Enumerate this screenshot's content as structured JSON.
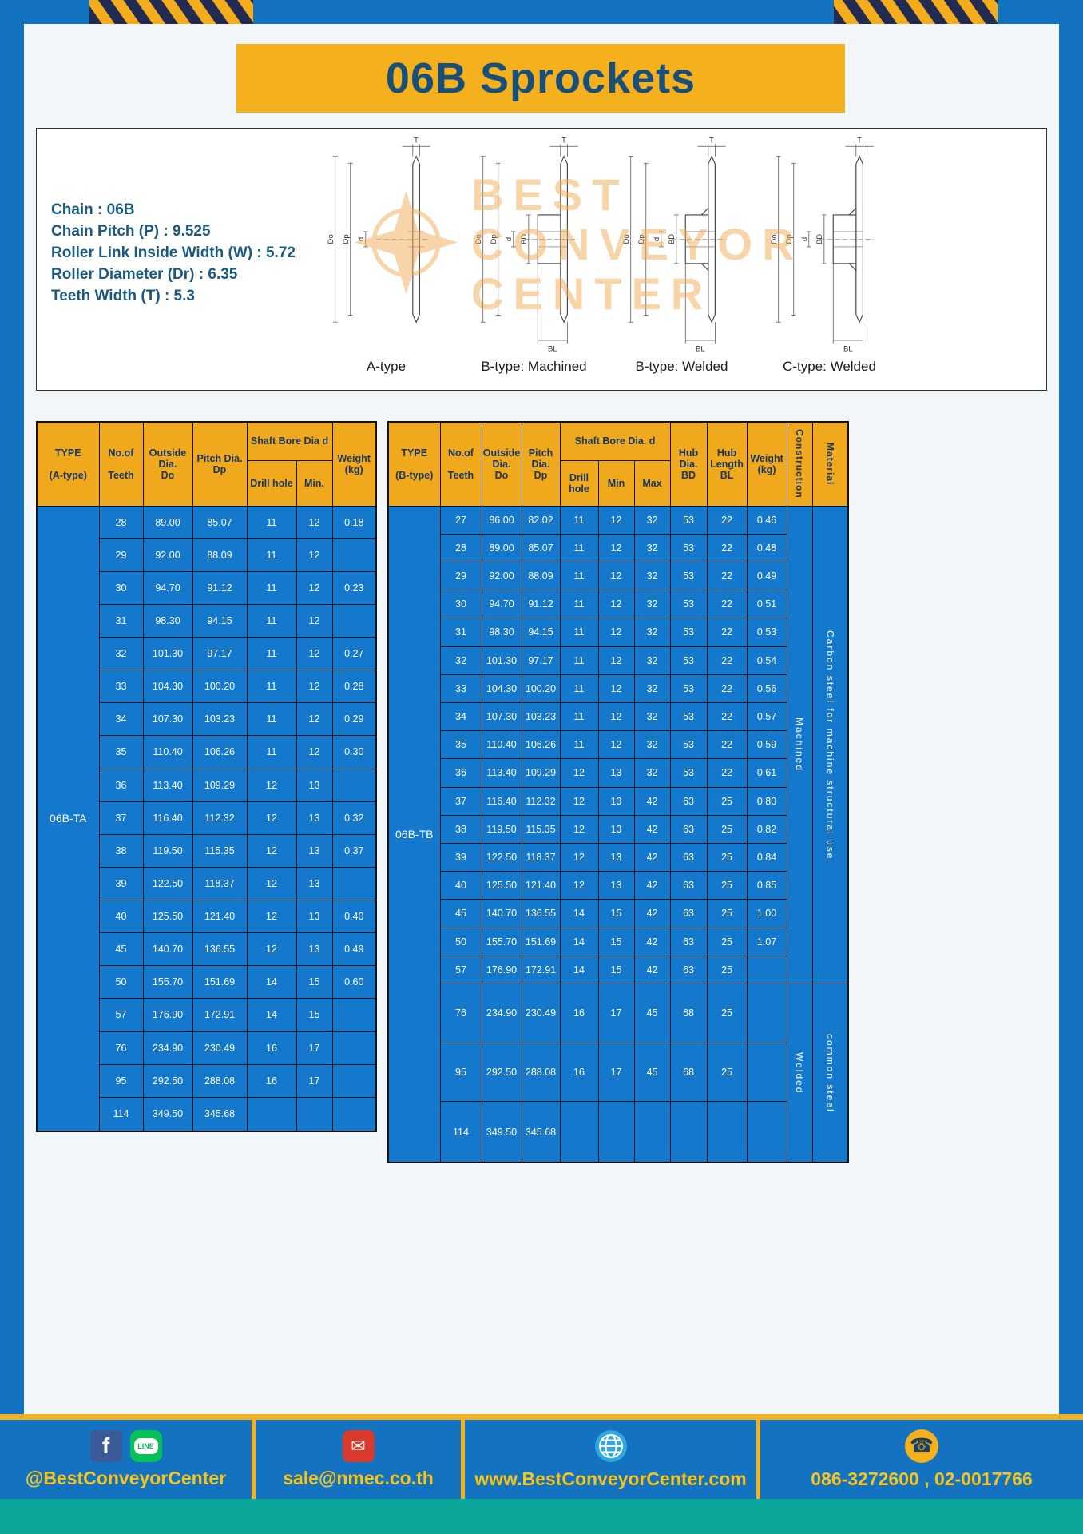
{
  "page": {
    "title": "06B Sprockets"
  },
  "colors": {
    "frame_blue": "#1373c0",
    "cell_blue": "#1478cd",
    "accent_yellow": "#f5b01d",
    "title_blue": "#174f7a",
    "footer_green": "#0aa69a"
  },
  "specs": {
    "lines": [
      "Chain : 06B",
      "Chain Pitch (P) : 9.525",
      "Roller Link Inside Width (W) : 5.72",
      "Roller Diameter (Dr) : 6.35",
      "Teeth Width (T) : 5.3"
    ]
  },
  "watermark": {
    "lines": [
      "BEST",
      "CONVEYOR",
      "CENTER"
    ]
  },
  "diagrams": [
    {
      "caption": "A-type",
      "dim_top": "T",
      "dims_left": [
        "Do",
        "Dp",
        "d"
      ],
      "dim_bottom": "",
      "hub": "none"
    },
    {
      "caption": "B-type: Machined",
      "dim_top": "T",
      "dims_left": [
        "Do",
        "Dp",
        "d",
        "BD"
      ],
      "dim_bottom": "BL",
      "hub": "machined"
    },
    {
      "caption": "B-type: Welded",
      "dim_top": "T",
      "dims_left": [
        "Do",
        "Dp",
        "d",
        "BD"
      ],
      "dim_bottom": "BL",
      "hub": "welded"
    },
    {
      "caption": "C-type: Welded",
      "dim_top": "T",
      "dims_left": [
        "Do",
        "Dp",
        "d",
        "BD"
      ],
      "dim_bottom": "BL",
      "hub": "welded"
    }
  ],
  "left_table": {
    "headers": {
      "type": "TYPE\n\n(A-type)",
      "teeth": "No.of\n\nTeeth",
      "outside": "Outside\nDia.\nDo",
      "pitch": "Pitch Dia.\nDp",
      "bore_group": "Shaft Bore Dia d",
      "drill": "Drill hole",
      "min": "Min.",
      "weight": "Weight\n(kg)"
    },
    "type_label": "06B-TA",
    "rows": [
      [
        "28",
        "89.00",
        "85.07",
        "11",
        "12",
        "0.18"
      ],
      [
        "29",
        "92.00",
        "88.09",
        "11",
        "12",
        ""
      ],
      [
        "30",
        "94.70",
        "91.12",
        "11",
        "12",
        "0.23"
      ],
      [
        "31",
        "98.30",
        "94.15",
        "11",
        "12",
        ""
      ],
      [
        "32",
        "101.30",
        "97.17",
        "11",
        "12",
        "0.27"
      ],
      [
        "33",
        "104.30",
        "100.20",
        "11",
        "12",
        "0.28"
      ],
      [
        "34",
        "107.30",
        "103.23",
        "11",
        "12",
        "0.29"
      ],
      [
        "35",
        "110.40",
        "106.26",
        "11",
        "12",
        "0.30"
      ],
      [
        "36",
        "113.40",
        "109.29",
        "12",
        "13",
        ""
      ],
      [
        "37",
        "116.40",
        "112.32",
        "12",
        "13",
        "0.32"
      ],
      [
        "38",
        "119.50",
        "115.35",
        "12",
        "13",
        "0.37"
      ],
      [
        "39",
        "122.50",
        "118.37",
        "12",
        "13",
        ""
      ],
      [
        "40",
        "125.50",
        "121.40",
        "12",
        "13",
        "0.40"
      ],
      [
        "45",
        "140.70",
        "136.55",
        "12",
        "13",
        "0.49"
      ],
      [
        "50",
        "155.70",
        "151.69",
        "14",
        "15",
        "0.60"
      ],
      [
        "57",
        "176.90",
        "172.91",
        "14",
        "15",
        ""
      ],
      [
        "76",
        "234.90",
        "230.49",
        "16",
        "17",
        ""
      ],
      [
        "95",
        "292.50",
        "288.08",
        "16",
        "17",
        ""
      ],
      [
        "114",
        "349.50",
        "345.68",
        "",
        "",
        ""
      ]
    ]
  },
  "right_table": {
    "headers": {
      "type": "TYPE\n\n(B-type)",
      "teeth": "No.of\n\nTeeth",
      "outside": "Outside\nDia.\nDo",
      "pitch": "Pitch\nDia.\nDp",
      "bore_group": "Shaft Bore Dia. d",
      "drill": "Drill hole",
      "min": "Min",
      "max": "Max",
      "hub_dia": "Hub\nDia.\nBD",
      "hub_len": "Hub\nLength\nBL",
      "weight": "Weight\n(kg)",
      "construction": "Construction",
      "material": "Material"
    },
    "type_label": "06B-TB",
    "construction_groups": [
      {
        "label": "Machined",
        "rows": 17
      },
      {
        "label": "Welded",
        "rows": 3
      }
    ],
    "material_groups": [
      {
        "label": "Carbon steel for machine structural use",
        "rows": 17
      },
      {
        "label": "common steel",
        "rows": 3
      }
    ],
    "rows": [
      [
        "27",
        "86.00",
        "82.02",
        "11",
        "12",
        "32",
        "53",
        "22",
        "0.46"
      ],
      [
        "28",
        "89.00",
        "85.07",
        "11",
        "12",
        "32",
        "53",
        "22",
        "0.48"
      ],
      [
        "29",
        "92.00",
        "88.09",
        "11",
        "12",
        "32",
        "53",
        "22",
        "0.49"
      ],
      [
        "30",
        "94.70",
        "91.12",
        "11",
        "12",
        "32",
        "53",
        "22",
        "0.51"
      ],
      [
        "31",
        "98.30",
        "94.15",
        "11",
        "12",
        "32",
        "53",
        "22",
        "0.53"
      ],
      [
        "32",
        "101.30",
        "97.17",
        "11",
        "12",
        "32",
        "53",
        "22",
        "0.54"
      ],
      [
        "33",
        "104.30",
        "100.20",
        "11",
        "12",
        "32",
        "53",
        "22",
        "0.56"
      ],
      [
        "34",
        "107.30",
        "103.23",
        "11",
        "12",
        "32",
        "53",
        "22",
        "0.57"
      ],
      [
        "35",
        "110.40",
        "106.26",
        "11",
        "12",
        "32",
        "53",
        "22",
        "0.59"
      ],
      [
        "36",
        "113.40",
        "109.29",
        "12",
        "13",
        "32",
        "53",
        "22",
        "0.61"
      ],
      [
        "37",
        "116.40",
        "112.32",
        "12",
        "13",
        "42",
        "63",
        "25",
        "0.80"
      ],
      [
        "38",
        "119.50",
        "115.35",
        "12",
        "13",
        "42",
        "63",
        "25",
        "0.82"
      ],
      [
        "39",
        "122.50",
        "118.37",
        "12",
        "13",
        "42",
        "63",
        "25",
        "0.84"
      ],
      [
        "40",
        "125.50",
        "121.40",
        "12",
        "13",
        "42",
        "63",
        "25",
        "0.85"
      ],
      [
        "45",
        "140.70",
        "136.55",
        "14",
        "15",
        "42",
        "63",
        "25",
        "1.00"
      ],
      [
        "50",
        "155.70",
        "151.69",
        "14",
        "15",
        "42",
        "63",
        "25",
        "1.07"
      ],
      [
        "57",
        "176.90",
        "172.91",
        "14",
        "15",
        "42",
        "63",
        "25",
        ""
      ],
      [
        "76",
        "234.90",
        "230.49",
        "16",
        "17",
        "45",
        "68",
        "25",
        ""
      ],
      [
        "95",
        "292.50",
        "288.08",
        "16",
        "17",
        "45",
        "68",
        "25",
        ""
      ],
      [
        "114",
        "349.50",
        "345.68",
        "",
        "",
        "",
        "",
        "",
        ""
      ]
    ]
  },
  "footer": {
    "sections": [
      {
        "text": "@BestConveyorCenter"
      },
      {
        "text": "sale@nmec.co.th"
      },
      {
        "text": "www.BestConveyorCenter.com"
      },
      {
        "text": "086-3272600 , 02-0017766"
      }
    ],
    "line_bubble_label": "LINE",
    "facebook_glyph": "f",
    "mail_glyph": "✉",
    "phone_glyph": "☎"
  }
}
